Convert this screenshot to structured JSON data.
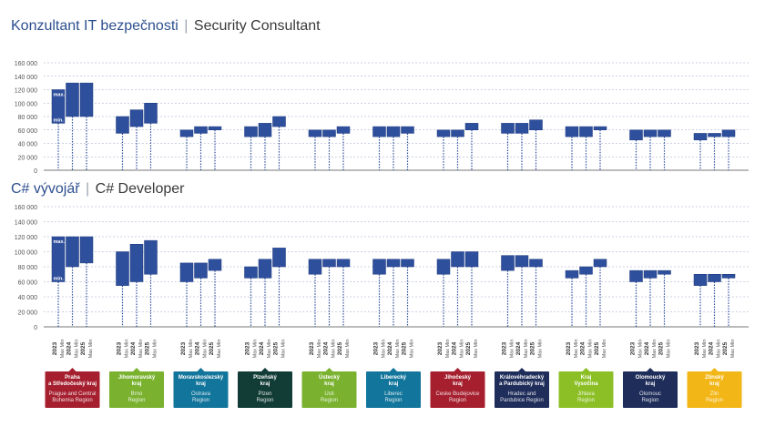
{
  "charts": [
    {
      "title_cz": "Konzultant IT bezpečnosti",
      "sep": "|",
      "title_en": "Security Consultant"
    },
    {
      "title_cz": "C# vývojář",
      "sep": "|",
      "title_en": "C# Developer"
    }
  ],
  "bar_labels": {
    "max": "max.",
    "min": "min."
  },
  "year_label_parts": {
    "top": "Max",
    "bottom": "Min"
  },
  "regions": [
    {
      "cz": [
        "Praha",
        "a Středočeský kraj"
      ],
      "en": [
        "Prague and Central",
        "Bohemia Region"
      ],
      "color": "#a51f2f"
    },
    {
      "cz": [
        "Jihomoravský",
        "kraj"
      ],
      "en": [
        "Brno",
        "Region"
      ],
      "color": "#7ab230"
    },
    {
      "cz": [
        "Moravskoslezský",
        "kraj"
      ],
      "en": [
        "Ostrava",
        "Region"
      ],
      "color": "#12759b"
    },
    {
      "cz": [
        "Plzeňský",
        "kraj"
      ],
      "en": [
        "Plzen",
        "Region"
      ],
      "color": "#123c36"
    },
    {
      "cz": [
        "Ústecký",
        "kraj"
      ],
      "en": [
        "Usti",
        "Region"
      ],
      "color": "#7ab230"
    },
    {
      "cz": [
        "Liberecký",
        "kraj"
      ],
      "en": [
        "Liberec",
        "Region"
      ],
      "color": "#12759b"
    },
    {
      "cz": [
        "Jihočeský",
        "kraj"
      ],
      "en": [
        "Ceske Budejovice",
        "Region"
      ],
      "color": "#a51f2f"
    },
    {
      "cz": [
        "Královéhradecký",
        "a Pardubický kraj"
      ],
      "en": [
        "Hradec and",
        "Pardubice Region"
      ],
      "color": "#1f2d5a"
    },
    {
      "cz": [
        "Kraj",
        "Vysočina"
      ],
      "en": [
        "Jihlava",
        "Region"
      ],
      "color": "#8cbf26"
    },
    {
      "cz": [
        "Olomoucký",
        "kraj"
      ],
      "en": [
        "Olomouc",
        "Region"
      ],
      "color": "#1f2d5a"
    },
    {
      "cz": [
        "Zlínský",
        "kraj"
      ],
      "en": [
        "Zlin",
        "Region"
      ],
      "color": "#f3b617"
    }
  ],
  "colors": {
    "bar": "#2e4f9c",
    "bar_stroke": "#1e3a80",
    "axis_text": "#555555",
    "grid": "#9aa7c7",
    "dotted": "#2e4f9c"
  },
  "chart_data": [
    {
      "type": "bar",
      "title": "Konzultant IT bezpečnosti | Security Consultant",
      "ylim": [
        0,
        160000
      ],
      "yticks": [
        "160 000",
        "140 000",
        "120 000",
        "100 000",
        "80 000",
        "60 000",
        "40 000",
        "20 000",
        "0"
      ],
      "x": [
        "2023",
        "2024",
        "2025"
      ],
      "series_note": "floating bars, min–max",
      "groups": [
        {
          "region": "Praha a Středočeský kraj",
          "ranges": [
            [
              70000,
              120000
            ],
            [
              80000,
              130000
            ],
            [
              80000,
              130000
            ]
          ]
        },
        {
          "region": "Jihomoravský kraj",
          "ranges": [
            [
              55000,
              80000
            ],
            [
              65000,
              90000
            ],
            [
              70000,
              100000
            ]
          ]
        },
        {
          "region": "Moravskoslezský kraj",
          "ranges": [
            [
              50000,
              60000
            ],
            [
              55000,
              65000
            ],
            [
              60000,
              65000
            ]
          ]
        },
        {
          "region": "Plzeňský kraj",
          "ranges": [
            [
              50000,
              65000
            ],
            [
              50000,
              70000
            ],
            [
              65000,
              80000
            ]
          ]
        },
        {
          "region": "Ústecký kraj",
          "ranges": [
            [
              50000,
              60000
            ],
            [
              50000,
              60000
            ],
            [
              55000,
              65000
            ]
          ]
        },
        {
          "region": "Liberecký kraj",
          "ranges": [
            [
              50000,
              65000
            ],
            [
              50000,
              65000
            ],
            [
              55000,
              65000
            ]
          ]
        },
        {
          "region": "Jihočeský kraj",
          "ranges": [
            [
              50000,
              60000
            ],
            [
              50000,
              60000
            ],
            [
              60000,
              70000
            ]
          ]
        },
        {
          "region": "Královéhradecký a Pardubický kraj",
          "ranges": [
            [
              55000,
              70000
            ],
            [
              55000,
              70000
            ],
            [
              60000,
              75000
            ]
          ]
        },
        {
          "region": "Kraj Vysočina",
          "ranges": [
            [
              50000,
              65000
            ],
            [
              50000,
              65000
            ],
            [
              60000,
              65000
            ]
          ]
        },
        {
          "region": "Olomoucký kraj",
          "ranges": [
            [
              45000,
              60000
            ],
            [
              50000,
              60000
            ],
            [
              50000,
              60000
            ]
          ]
        },
        {
          "region": "Zlínský kraj",
          "ranges": [
            [
              45000,
              55000
            ],
            [
              50000,
              55000
            ],
            [
              50000,
              60000
            ]
          ]
        }
      ]
    },
    {
      "type": "bar",
      "title": "C# vývojář | C# Developer",
      "ylim": [
        0,
        160000
      ],
      "yticks": [
        "160 000",
        "140 000",
        "120 000",
        "100 000",
        "80 000",
        "60 000",
        "40 000",
        "20 000",
        "0"
      ],
      "x": [
        "2023",
        "2024",
        "2025"
      ],
      "series_note": "floating bars, min–max",
      "groups": [
        {
          "region": "Praha a Středočeský kraj",
          "ranges": [
            [
              60000,
              120000
            ],
            [
              80000,
              120000
            ],
            [
              85000,
              120000
            ]
          ]
        },
        {
          "region": "Jihomoravský kraj",
          "ranges": [
            [
              55000,
              100000
            ],
            [
              60000,
              110000
            ],
            [
              70000,
              115000
            ]
          ]
        },
        {
          "region": "Moravskoslezský kraj",
          "ranges": [
            [
              60000,
              85000
            ],
            [
              65000,
              85000
            ],
            [
              75000,
              90000
            ]
          ]
        },
        {
          "region": "Plzeňský kraj",
          "ranges": [
            [
              65000,
              80000
            ],
            [
              65000,
              90000
            ],
            [
              80000,
              105000
            ]
          ]
        },
        {
          "region": "Ústecký kraj",
          "ranges": [
            [
              70000,
              90000
            ],
            [
              80000,
              90000
            ],
            [
              80000,
              90000
            ]
          ]
        },
        {
          "region": "Liberecký kraj",
          "ranges": [
            [
              70000,
              90000
            ],
            [
              80000,
              90000
            ],
            [
              80000,
              90000
            ]
          ]
        },
        {
          "region": "Jihočeský kraj",
          "ranges": [
            [
              70000,
              90000
            ],
            [
              80000,
              100000
            ],
            [
              80000,
              100000
            ]
          ]
        },
        {
          "region": "Královéhradecký a Pardubický kraj",
          "ranges": [
            [
              75000,
              95000
            ],
            [
              80000,
              95000
            ],
            [
              80000,
              90000
            ]
          ]
        },
        {
          "region": "Kraj Vysočina",
          "ranges": [
            [
              65000,
              75000
            ],
            [
              70000,
              80000
            ],
            [
              80000,
              90000
            ]
          ]
        },
        {
          "region": "Olomoucký kraj",
          "ranges": [
            [
              60000,
              75000
            ],
            [
              65000,
              75000
            ],
            [
              70000,
              75000
            ]
          ]
        },
        {
          "region": "Zlínský kraj",
          "ranges": [
            [
              55000,
              70000
            ],
            [
              60000,
              70000
            ],
            [
              65000,
              70000
            ]
          ]
        }
      ]
    }
  ]
}
